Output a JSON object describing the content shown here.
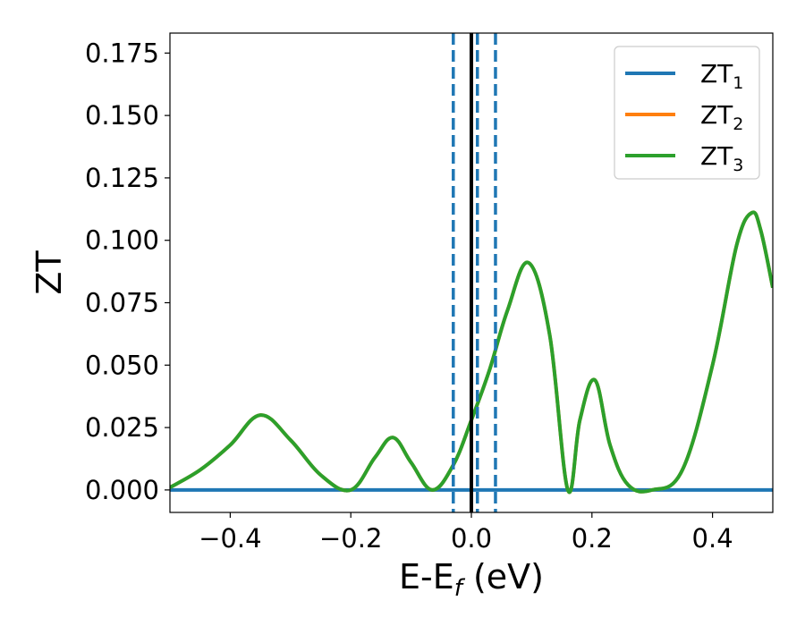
{
  "chart_data": {
    "type": "line",
    "title": "",
    "xlabel": {
      "main": "E-E",
      "sub": "f",
      "rest": " (eV)"
    },
    "ylabel": "ZT",
    "xlim": [
      -0.5,
      0.5
    ],
    "ylim": [
      -0.009,
      0.183
    ],
    "xticks": [
      -0.4,
      -0.2,
      0.0,
      0.2,
      0.4
    ],
    "xtick_labels": [
      "−0.4",
      "−0.2",
      "0.0",
      "0.2",
      "0.4"
    ],
    "yticks": [
      0.0,
      0.025,
      0.05,
      0.075,
      0.1,
      0.125,
      0.15,
      0.175
    ],
    "ytick_labels": [
      "0.000",
      "0.025",
      "0.050",
      "0.075",
      "0.100",
      "0.125",
      "0.150",
      "0.175"
    ],
    "grid": false,
    "legend_position": "top-right",
    "vertical_lines": [
      {
        "x": 0.0,
        "style": "solid",
        "color": "#000000"
      },
      {
        "x": -0.03,
        "style": "dashed",
        "color": "#1f77b4"
      },
      {
        "x": 0.01,
        "style": "dashed",
        "color": "#1f77b4"
      },
      {
        "x": 0.04,
        "style": "dashed",
        "color": "#1f77b4"
      }
    ],
    "series": [
      {
        "name": "ZT",
        "sub": "1",
        "color": "#1f77b4",
        "x": [
          -0.5,
          0.5
        ],
        "y": [
          0.0,
          0.0
        ]
      },
      {
        "name": "ZT",
        "sub": "2",
        "color": "#ff7f0e",
        "x": [
          -0.5,
          -0.45,
          -0.4,
          -0.35,
          -0.3,
          -0.25,
          -0.2,
          -0.16,
          -0.13,
          -0.1,
          -0.065,
          -0.03,
          0.0,
          0.03,
          0.06,
          0.095,
          0.13,
          0.16,
          0.18,
          0.205,
          0.23,
          0.26,
          0.3,
          0.35,
          0.4,
          0.44,
          0.465,
          0.48,
          0.5
        ],
        "y": [
          0.001,
          0.008,
          0.018,
          0.03,
          0.02,
          0.006,
          0.0,
          0.013,
          0.021,
          0.011,
          0.0,
          0.01,
          0.028,
          0.048,
          0.072,
          0.091,
          0.062,
          0.0,
          0.028,
          0.044,
          0.018,
          0.002,
          0.0,
          0.008,
          0.05,
          0.098,
          0.111,
          0.104,
          0.081
        ]
      },
      {
        "name": "ZT",
        "sub": "3",
        "color": "#2ca02c",
        "x": [
          -0.5,
          -0.45,
          -0.4,
          -0.35,
          -0.3,
          -0.25,
          -0.2,
          -0.16,
          -0.13,
          -0.1,
          -0.065,
          -0.03,
          0.0,
          0.03,
          0.06,
          0.095,
          0.13,
          0.16,
          0.18,
          0.205,
          0.23,
          0.26,
          0.3,
          0.35,
          0.4,
          0.44,
          0.465,
          0.48,
          0.5
        ],
        "y": [
          0.001,
          0.008,
          0.018,
          0.03,
          0.02,
          0.006,
          0.0,
          0.013,
          0.021,
          0.011,
          0.0,
          0.01,
          0.028,
          0.048,
          0.072,
          0.091,
          0.062,
          0.0,
          0.028,
          0.044,
          0.018,
          0.002,
          0.0,
          0.008,
          0.05,
          0.098,
          0.111,
          0.104,
          0.081
        ]
      }
    ]
  }
}
